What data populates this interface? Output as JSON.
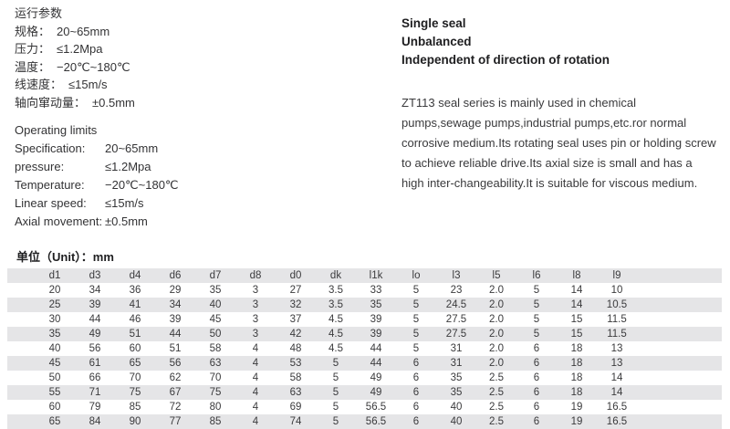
{
  "colors": {
    "bg": "#ffffff",
    "stripe": "#e5e5e7",
    "text": "#3b3b3d"
  },
  "cn_params": {
    "title": "运行参数",
    "items": [
      {
        "label": "规格：",
        "value": "20~65mm"
      },
      {
        "label": "压力：",
        "value": "≤1.2Mpa"
      },
      {
        "label": "温度：",
        "value": "−20℃~180℃"
      },
      {
        "label": "线速度：",
        "value": "≤15m/s"
      },
      {
        "label": "轴向窜动量：",
        "value": "±0.5mm"
      }
    ]
  },
  "en_params": {
    "title": "Operating limits",
    "items": [
      {
        "label": "Specification:",
        "value": "20~65mm"
      },
      {
        "label": "pressure:",
        "value": "≤1.2Mpa"
      },
      {
        "label": "Temperature:",
        "value": "−20℃~180℃"
      },
      {
        "label": "Linear speed:",
        "value": "≤15m/s"
      },
      {
        "label": "Axial movement:",
        "value": "±0.5mm"
      }
    ]
  },
  "features": [
    "Single seal",
    "Unbalanced",
    "Independent of direction of rotation"
  ],
  "description": "ZT113 seal series is mainly used in chemical pumps,sewage pumps,industrial pumps,etc.ror normal corrosive medium.Its rotating seal uses pin or holding screw to achieve reliable drive.Its axial size is small and has a high inter-changeability.It is suitable for viscous medium.",
  "unit_label": "单位（Unit）：mm",
  "table": {
    "headers": [
      "d1",
      "d3",
      "d4",
      "d6",
      "d7",
      "d8",
      "d0",
      "dk",
      "l1k",
      "lo",
      "l3",
      "l5",
      "l6",
      "l8",
      "l9"
    ],
    "rows": [
      [
        "20",
        "34",
        "36",
        "29",
        "35",
        "3",
        "27",
        "3.5",
        "33",
        "5",
        "23",
        "2.0",
        "5",
        "14",
        "10"
      ],
      [
        "25",
        "39",
        "41",
        "34",
        "40",
        "3",
        "32",
        "3.5",
        "35",
        "5",
        "24.5",
        "2.0",
        "5",
        "14",
        "10.5"
      ],
      [
        "30",
        "44",
        "46",
        "39",
        "45",
        "3",
        "37",
        "4.5",
        "39",
        "5",
        "27.5",
        "2.0",
        "5",
        "15",
        "11.5"
      ],
      [
        "35",
        "49",
        "51",
        "44",
        "50",
        "3",
        "42",
        "4.5",
        "39",
        "5",
        "27.5",
        "2.0",
        "5",
        "15",
        "11.5"
      ],
      [
        "40",
        "56",
        "60",
        "51",
        "58",
        "4",
        "48",
        "4.5",
        "44",
        "5",
        "31",
        "2.0",
        "6",
        "18",
        "13"
      ],
      [
        "45",
        "61",
        "65",
        "56",
        "63",
        "4",
        "53",
        "5",
        "44",
        "6",
        "31",
        "2.0",
        "6",
        "18",
        "13"
      ],
      [
        "50",
        "66",
        "70",
        "62",
        "70",
        "4",
        "58",
        "5",
        "49",
        "6",
        "35",
        "2.5",
        "6",
        "18",
        "14"
      ],
      [
        "55",
        "71",
        "75",
        "67",
        "75",
        "4",
        "63",
        "5",
        "49",
        "6",
        "35",
        "2.5",
        "6",
        "18",
        "14"
      ],
      [
        "60",
        "79",
        "85",
        "72",
        "80",
        "4",
        "69",
        "5",
        "56.5",
        "6",
        "40",
        "2.5",
        "6",
        "19",
        "16.5"
      ],
      [
        "65",
        "84",
        "90",
        "77",
        "85",
        "4",
        "74",
        "5",
        "56.5",
        "6",
        "40",
        "2.5",
        "6",
        "19",
        "16.5"
      ]
    ]
  }
}
